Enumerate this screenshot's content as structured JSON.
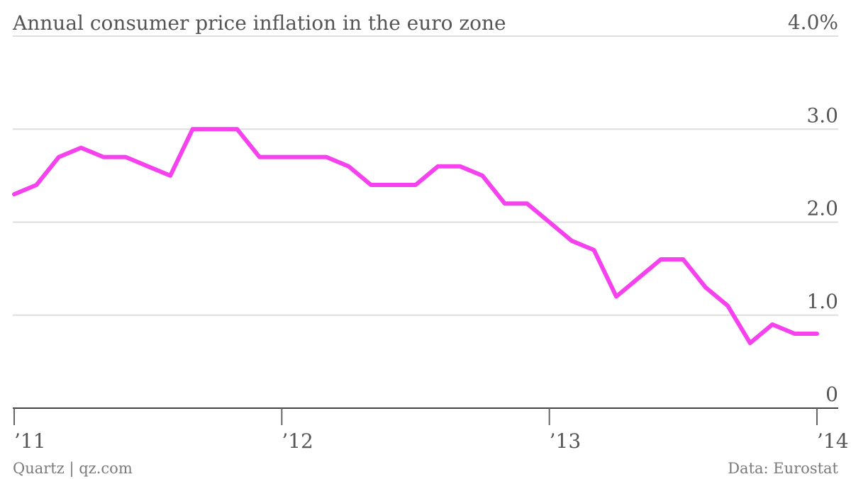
{
  "chart_data": {
    "type": "line",
    "title": "Annual consumer price inflation in the euro zone",
    "xlabel": "",
    "ylabel": "",
    "y_ticks": [
      {
        "value": 0,
        "label": "0"
      },
      {
        "value": 1,
        "label": "1.0"
      },
      {
        "value": 2,
        "label": "2.0"
      },
      {
        "value": 3,
        "label": "3.0"
      },
      {
        "value": 4,
        "label": "4.0%"
      }
    ],
    "ylim": [
      0,
      4
    ],
    "xlim": [
      "2011-01",
      "2014-01"
    ],
    "x_ticks": [
      {
        "value": "2011-01",
        "label": "’11"
      },
      {
        "value": "2012-01",
        "label": "’12"
      },
      {
        "value": "2013-01",
        "label": "’13"
      },
      {
        "value": "2014-01",
        "label": "’14"
      }
    ],
    "grid": true,
    "legend": "none",
    "series": [
      {
        "color": "#f542ee",
        "x": [
          "2011-01",
          "2011-02",
          "2011-03",
          "2011-04",
          "2011-05",
          "2011-06",
          "2011-07",
          "2011-08",
          "2011-09",
          "2011-10",
          "2011-11",
          "2011-12",
          "2012-01",
          "2012-02",
          "2012-03",
          "2012-04",
          "2012-05",
          "2012-06",
          "2012-07",
          "2012-08",
          "2012-09",
          "2012-10",
          "2012-11",
          "2012-12",
          "2013-01",
          "2013-02",
          "2013-03",
          "2013-04",
          "2013-05",
          "2013-06",
          "2013-07",
          "2013-08",
          "2013-09",
          "2013-10",
          "2013-11",
          "2013-12",
          "2014-01"
        ],
        "values": [
          2.3,
          2.4,
          2.7,
          2.8,
          2.7,
          2.7,
          2.6,
          2.5,
          3.0,
          3.0,
          3.0,
          2.7,
          2.7,
          2.7,
          2.7,
          2.6,
          2.4,
          2.4,
          2.4,
          2.6,
          2.6,
          2.5,
          2.2,
          2.2,
          2.0,
          1.8,
          1.7,
          1.2,
          1.4,
          1.6,
          1.6,
          1.3,
          1.1,
          0.7,
          0.9,
          0.8,
          0.8
        ]
      }
    ]
  },
  "footer": {
    "source_left": "Quartz | qz.com",
    "source_right": "Data: Eurostat"
  },
  "colors": {
    "line": "#f542ee",
    "text": "#555555",
    "grid": "#dddddd",
    "axis": "#444444"
  }
}
